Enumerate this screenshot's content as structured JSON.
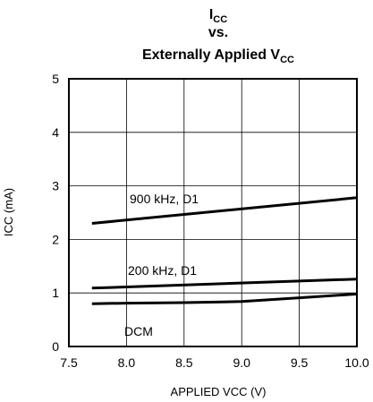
{
  "chart_data": {
    "type": "line",
    "title": {
      "line1_main": "I",
      "line1_sub": "CC",
      "line2": "vs.",
      "line3_main": "Externally Applied V",
      "line3_sub": "CC"
    },
    "xlabel": "APPLIED VCC (V)",
    "ylabel": "ICC (mA)",
    "xlim": [
      7.5,
      10.0
    ],
    "ylim": [
      0,
      5
    ],
    "xticks": [
      "7.5",
      "8.0",
      "8.5",
      "9.0",
      "9.5",
      "10.0"
    ],
    "yticks": [
      "0",
      "1",
      "2",
      "3",
      "4",
      "5"
    ],
    "grid": true,
    "series": [
      {
        "name": "900 kHz, D1",
        "x": [
          7.7,
          10.0
        ],
        "y": [
          2.3,
          2.78
        ]
      },
      {
        "name": "200 kHz, D1",
        "x": [
          7.7,
          10.0
        ],
        "y": [
          1.09,
          1.26
        ]
      },
      {
        "name": "DCM",
        "x": [
          7.7,
          8.0,
          8.5,
          9.0,
          9.5,
          10.0
        ],
        "y": [
          0.8,
          0.81,
          0.82,
          0.84,
          0.91,
          0.98
        ]
      }
    ]
  }
}
